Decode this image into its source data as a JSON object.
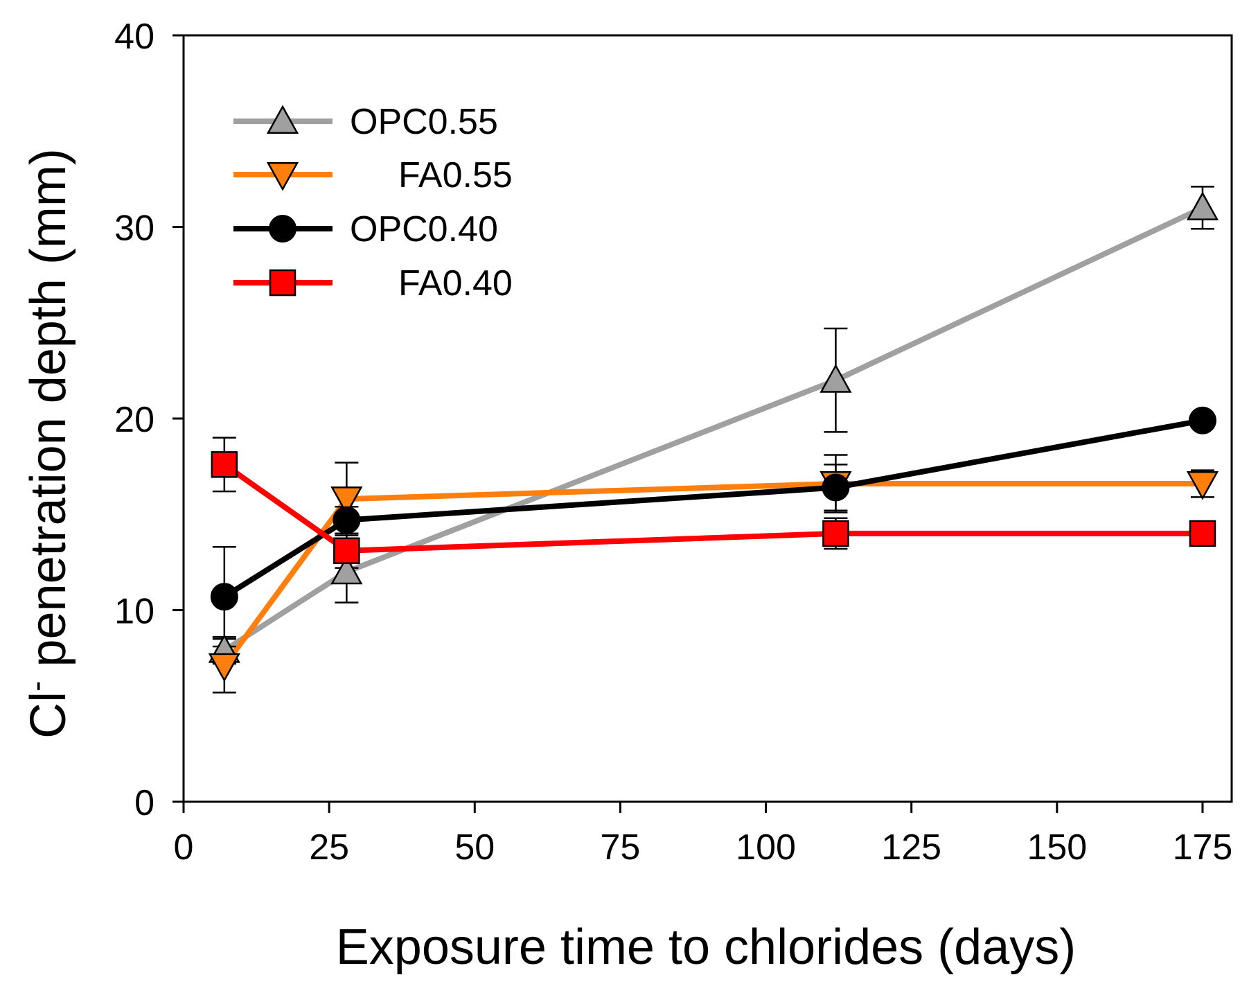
{
  "chart_data": {
    "type": "line",
    "title": "",
    "xlabel": "Exposure time to chlorides (days)",
    "ylabel_main": "Cl",
    "ylabel_sup": "-",
    "ylabel_rest": " penetration depth (mm)",
    "xlim": [
      0,
      180
    ],
    "ylim": [
      0,
      40
    ],
    "xticks": [
      0,
      25,
      50,
      75,
      100,
      125,
      150,
      175
    ],
    "yticks": [
      0,
      10,
      20,
      30,
      40
    ],
    "legend_position": "top-left",
    "series": [
      {
        "name": "OPC0.55",
        "color": "#a0a0a0",
        "marker": "triangle-up",
        "marker_fill": "#a0a0a0",
        "x": [
          7,
          28,
          112,
          175
        ],
        "y": [
          7.9,
          12.0,
          22.0,
          31.0
        ],
        "err": [
          0.7,
          1.6,
          2.7,
          1.1
        ]
      },
      {
        "name": "FA0.55",
        "color": "#ff7f0e",
        "marker": "triangle-down",
        "marker_fill": "#ff7f0e",
        "x": [
          7,
          28,
          112,
          175
        ],
        "y": [
          7.1,
          15.8,
          16.6,
          16.6
        ],
        "err": [
          1.4,
          1.9,
          1.5,
          0.7
        ]
      },
      {
        "name": "OPC0.40",
        "color": "#000000",
        "marker": "circle",
        "marker_fill": "#000000",
        "x": [
          7,
          28,
          112,
          175
        ],
        "y": [
          10.7,
          14.7,
          16.4,
          19.9
        ],
        "err": [
          2.6,
          0.7,
          1.2,
          0.2
        ]
      },
      {
        "name": "FA0.40",
        "color": "#ff0000",
        "marker": "square",
        "marker_fill": "#ff0000",
        "x": [
          7,
          28,
          112,
          175
        ],
        "y": [
          17.6,
          13.1,
          14.0,
          14.0
        ],
        "err": [
          1.4,
          0.9,
          0.8,
          0.2
        ]
      }
    ]
  }
}
